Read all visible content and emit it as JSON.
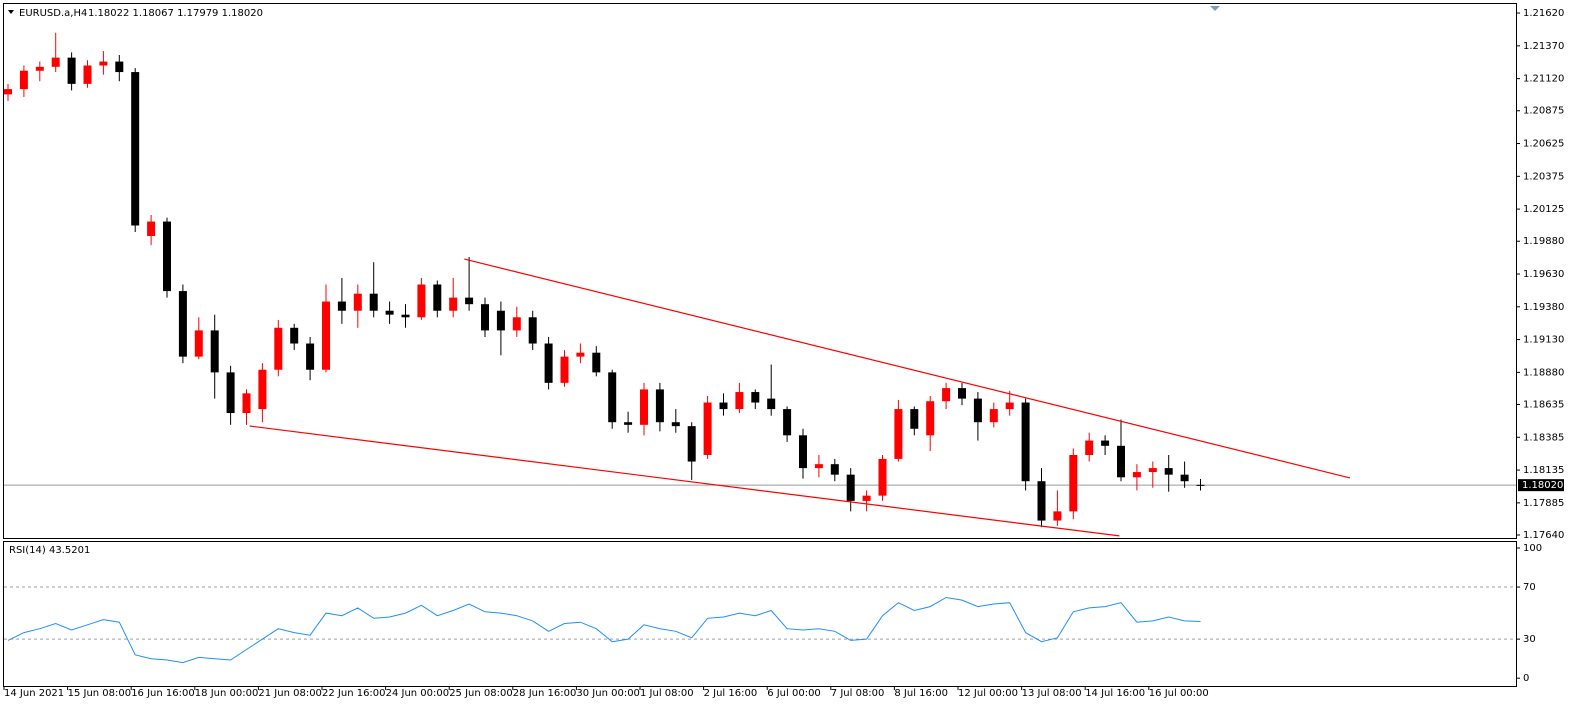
{
  "chart_data": [
    {
      "type": "candlestick",
      "title": "EURUSD.a,H4",
      "subtitle": "1.18022 1.18067 1.17979 1.18020",
      "categories": [
        "14 Jun 2021",
        null,
        null,
        null,
        "15 Jun 08:00",
        null,
        null,
        null,
        "16 Jun 16:00",
        null,
        null,
        null,
        "18 Jun 00:00",
        null,
        null,
        null,
        "21 Jun 08:00",
        null,
        null,
        null,
        "22 Jun 16:00",
        null,
        null,
        null,
        "24 Jun 00:00",
        null,
        null,
        null,
        "25 Jun 08:00",
        null,
        null,
        null,
        "28 Jun 16:00",
        null,
        null,
        null,
        "30 Jun 00:00",
        null,
        null,
        null,
        "1 Jul 08:00",
        null,
        null,
        null,
        "2 Jul 16:00",
        null,
        null,
        null,
        "6 Jul 00:00",
        null,
        null,
        null,
        "7 Jul 08:00",
        null,
        null,
        null,
        "8 Jul 16:00",
        null,
        null,
        null,
        "12 Jul 00:00",
        null,
        null,
        null,
        "13 Jul 08:00",
        null,
        null,
        null,
        "14 Jul 16:00",
        null,
        null,
        null,
        "16 Jul 00:00",
        null,
        null,
        null
      ],
      "open": [
        1.21,
        1.2104,
        1.2118,
        1.2121,
        1.2128,
        1.2108,
        1.2122,
        1.2125,
        1.2117,
        1.1992,
        1.2003,
        1.195,
        1.19,
        1.192,
        1.1888,
        1.1857,
        1.186,
        1.189,
        1.1922,
        1.191,
        1.189,
        1.1942,
        1.1935,
        1.1948,
        1.1935,
        1.1932,
        1.193,
        1.1955,
        1.1935,
        1.1945,
        1.194,
        1.1935,
        1.192,
        1.193,
        1.191,
        1.188,
        1.19,
        1.1903,
        1.1888,
        1.185,
        1.1848,
        1.1875,
        1.185,
        1.1847,
        1.1825,
        1.1865,
        1.186,
        1.1873,
        1.1868,
        1.186,
        1.184,
        1.1815,
        1.1818,
        1.181,
        1.179,
        1.1794,
        1.1822,
        1.186,
        1.184,
        1.1866,
        1.1876,
        1.1868,
        1.185,
        1.186,
        1.1865,
        1.1805,
        1.1775,
        1.1782,
        1.1825,
        1.1836,
        1.1832,
        1.1808,
        1.1812,
        1.1815,
        1.181,
        1.18022
      ],
      "high": [
        1.2108,
        1.2122,
        1.2125,
        1.2147,
        1.2132,
        1.2126,
        1.2133,
        1.213,
        1.212,
        1.2008,
        1.2006,
        1.1955,
        1.193,
        1.1932,
        1.1893,
        1.1875,
        1.1895,
        1.1928,
        1.1925,
        1.1915,
        1.1955,
        1.196,
        1.1955,
        1.1972,
        1.1942,
        1.194,
        1.196,
        1.1958,
        1.196,
        1.1976,
        1.1945,
        1.1942,
        1.1938,
        1.1935,
        1.1915,
        1.1905,
        1.191,
        1.1908,
        1.189,
        1.1858,
        1.188,
        1.188,
        1.186,
        1.185,
        1.187,
        1.1872,
        1.188,
        1.1875,
        1.1894,
        1.1862,
        1.1845,
        1.1825,
        1.1822,
        1.1815,
        1.1798,
        1.1825,
        1.1867,
        1.1862,
        1.187,
        1.188,
        1.188,
        1.1873,
        1.1865,
        1.1874,
        1.1868,
        1.1815,
        1.1798,
        1.183,
        1.1842,
        1.184,
        1.1852,
        1.1818,
        1.182,
        1.1825,
        1.182,
        1.18067
      ],
      "low": [
        1.2095,
        1.2098,
        1.211,
        1.2117,
        1.2103,
        1.2105,
        1.2115,
        1.211,
        1.1995,
        1.1985,
        1.1945,
        1.1895,
        1.1898,
        1.1868,
        1.1848,
        1.1848,
        1.185,
        1.1885,
        1.1905,
        1.1882,
        1.1888,
        1.1925,
        1.1922,
        1.193,
        1.1925,
        1.1922,
        1.1928,
        1.193,
        1.193,
        1.1935,
        1.1915,
        1.1901,
        1.1915,
        1.1905,
        1.1875,
        1.1877,
        1.1895,
        1.1885,
        1.1845,
        1.1842,
        1.184,
        1.1843,
        1.1842,
        1.1806,
        1.1822,
        1.1855,
        1.1857,
        1.186,
        1.1855,
        1.1835,
        1.1807,
        1.1808,
        1.1805,
        1.1782,
        1.1782,
        1.179,
        1.182,
        1.184,
        1.1828,
        1.186,
        1.1863,
        1.1836,
        1.1846,
        1.1855,
        1.1798,
        1.177,
        1.1771,
        1.1776,
        1.182,
        1.1825,
        1.1805,
        1.1798,
        1.18,
        1.1797,
        1.18,
        1.17979
      ],
      "close": [
        1.2104,
        1.2118,
        1.2121,
        1.2128,
        1.2108,
        1.2122,
        1.2125,
        1.2117,
        1.2,
        1.2003,
        1.195,
        1.19,
        1.192,
        1.1888,
        1.1857,
        1.1872,
        1.189,
        1.1922,
        1.191,
        1.189,
        1.1942,
        1.1935,
        1.1948,
        1.1935,
        1.1932,
        1.193,
        1.1955,
        1.1935,
        1.1945,
        1.194,
        1.192,
        1.192,
        1.193,
        1.191,
        1.188,
        1.19,
        1.1903,
        1.1888,
        1.185,
        1.1848,
        1.1875,
        1.185,
        1.1847,
        1.182,
        1.1865,
        1.186,
        1.1873,
        1.1865,
        1.186,
        1.184,
        1.1815,
        1.1818,
        1.181,
        1.179,
        1.1794,
        1.1822,
        1.186,
        1.1845,
        1.1866,
        1.1876,
        1.1868,
        1.185,
        1.186,
        1.1865,
        1.1805,
        1.1775,
        1.1782,
        1.1825,
        1.1836,
        1.1832,
        1.1808,
        1.1812,
        1.1815,
        1.181,
        1.1805,
        1.1802
      ],
      "up_color": "#ff0000",
      "down_color": "#000000",
      "ylim": [
        1.17617,
        1.21689
      ],
      "yticks": [
        {
          "value": 1.2162,
          "label": "1.21620"
        },
        {
          "value": 1.2137,
          "label": "1.21370"
        },
        {
          "value": 1.2112,
          "label": "1.21120"
        },
        {
          "value": 1.20875,
          "label": "1.20875"
        },
        {
          "value": 1.20625,
          "label": "1.20625"
        },
        {
          "value": 1.20375,
          "label": "1.20375"
        },
        {
          "value": 1.20125,
          "label": "1.20125"
        },
        {
          "value": 1.1988,
          "label": "1.19880"
        },
        {
          "value": 1.1963,
          "label": "1.19630"
        },
        {
          "value": 1.1938,
          "label": "1.19380"
        },
        {
          "value": 1.1913,
          "label": "1.19130"
        },
        {
          "value": 1.1888,
          "label": "1.18880"
        },
        {
          "value": 1.18635,
          "label": "1.18635"
        },
        {
          "value": 1.18385,
          "label": "1.18385"
        },
        {
          "value": 1.18135,
          "label": "1.18135"
        },
        {
          "value": 1.17885,
          "label": "1.17885"
        },
        {
          "value": 1.1764,
          "label": "1.17640"
        }
      ],
      "price_line": {
        "value": 1.1802,
        "label": "1.18020"
      },
      "trendlines": [
        {
          "x": [
            28.7,
            84.4
          ],
          "y": [
            1.19744,
            1.18075
          ]
        },
        {
          "x": [
            15.2,
            69.9
          ],
          "y": [
            1.18471,
            1.17633
          ]
        }
      ],
      "trendline_color": "#ff0000"
    },
    {
      "type": "line",
      "title": "RSI(14) 43.5201",
      "values": [
        29,
        35,
        38,
        42,
        37,
        41,
        45,
        43,
        18,
        15,
        14,
        12,
        16,
        15,
        14,
        22,
        30,
        38,
        35,
        33,
        50,
        48,
        54,
        46,
        47,
        50,
        56,
        48,
        52,
        57,
        51,
        50,
        48,
        44,
        36,
        42,
        43,
        38,
        28,
        30,
        41,
        38,
        36,
        31,
        46,
        47,
        50,
        48,
        52,
        38,
        37,
        38,
        36,
        29,
        30,
        48,
        58,
        52,
        55,
        62,
        60,
        55,
        57,
        58,
        35,
        28,
        31,
        51,
        54,
        55,
        58,
        43,
        44,
        47,
        44,
        43.5201
      ],
      "color": "#1e90ff",
      "ylim": [
        -6,
        104.6
      ],
      "yticks": [
        100,
        70,
        30,
        0
      ],
      "levels": [
        30,
        70
      ]
    }
  ]
}
